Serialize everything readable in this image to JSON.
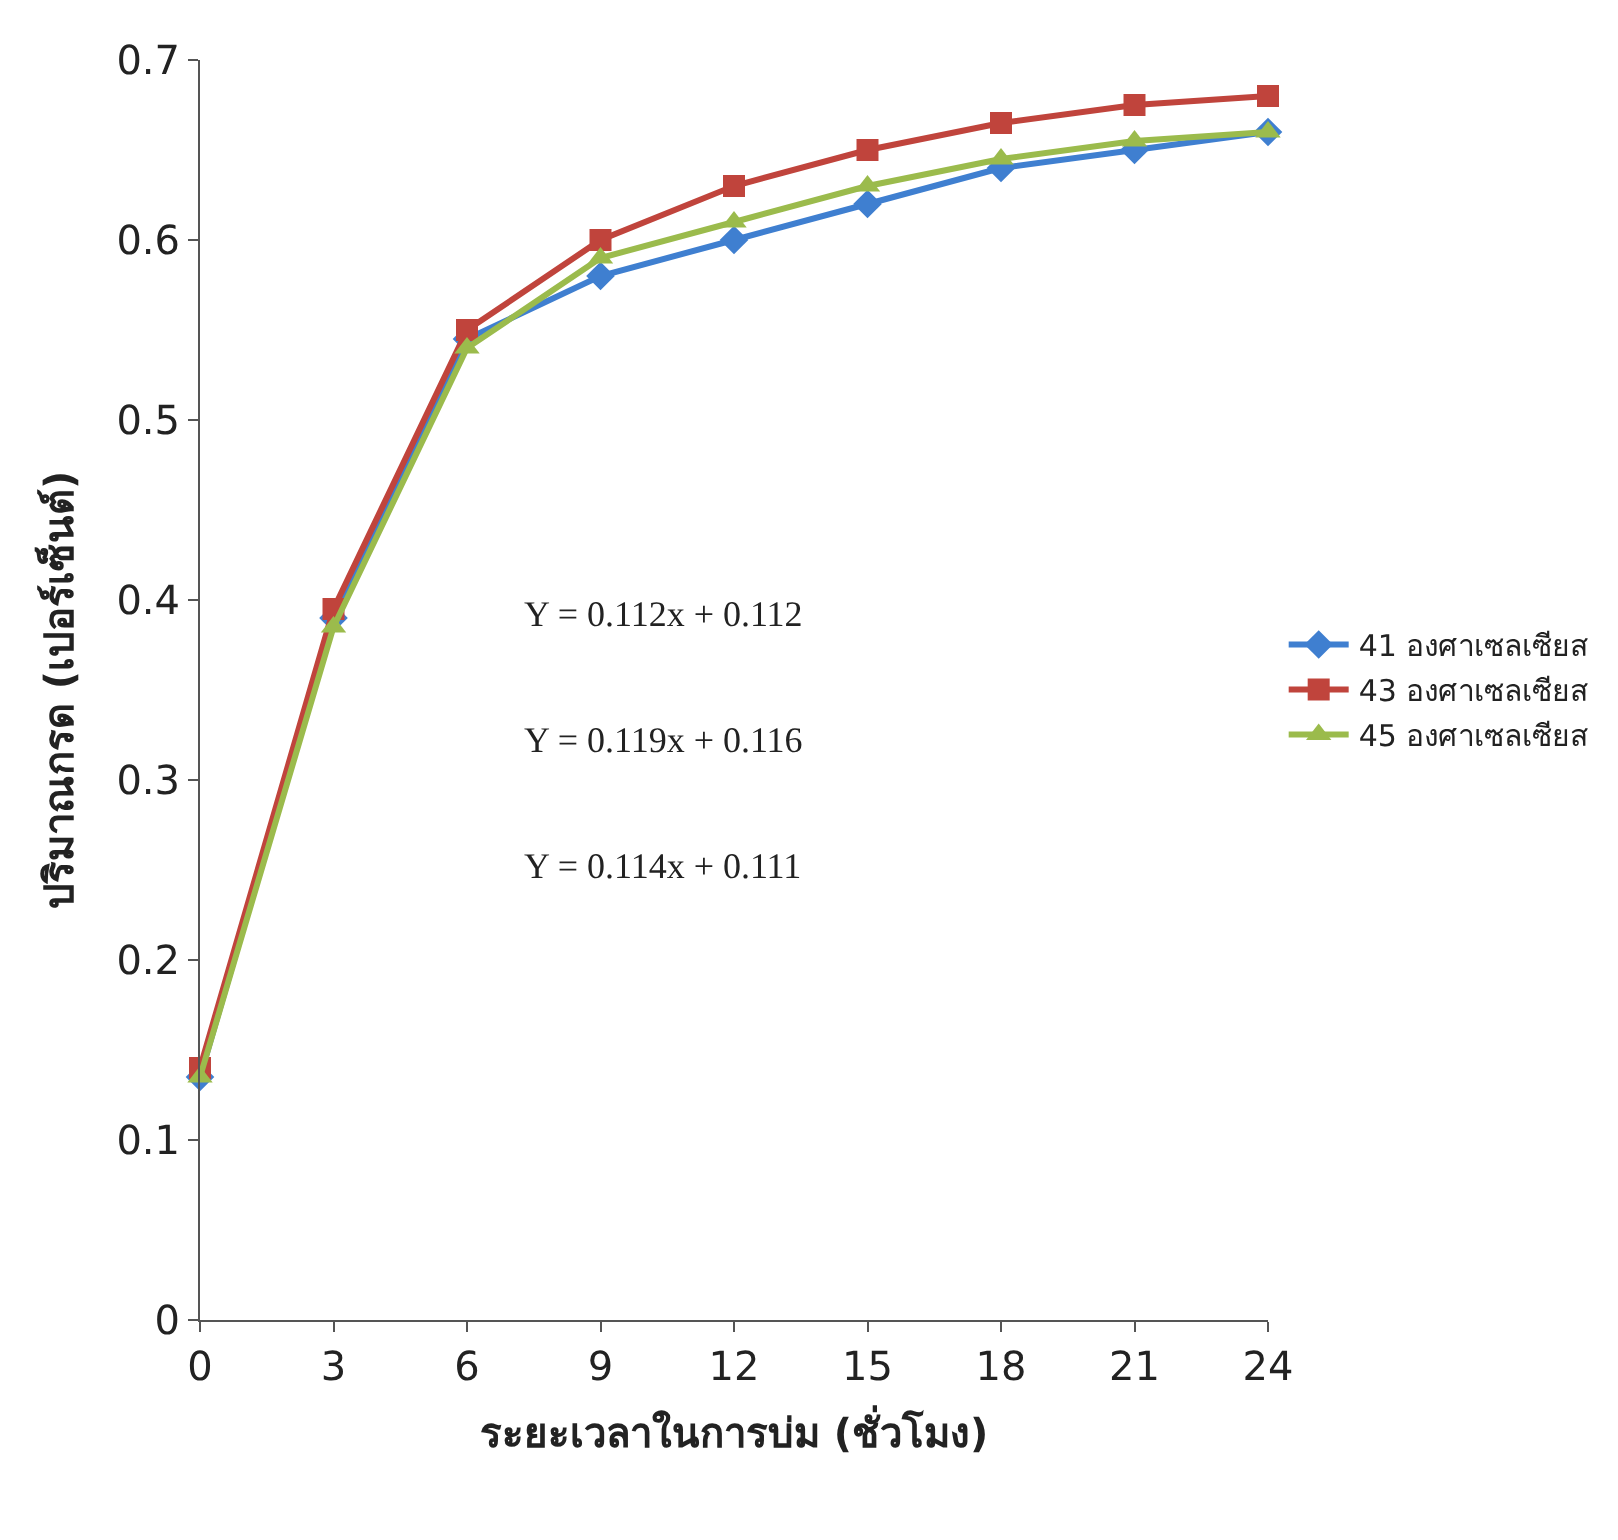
{
  "chart_data": {
    "type": "line",
    "xlabel": "ระยะเวลาในการบ่ม (ชั่วโมง)",
    "ylabel": "ปริมาณกรด (เปอร์เซ็นต์)",
    "x": [
      0,
      3,
      6,
      9,
      12,
      15,
      18,
      21,
      24
    ],
    "series": [
      {
        "name": "41 องศาเซลเซียส",
        "color": "#3f7fd0",
        "marker": "diamond",
        "values": [
          0.135,
          0.39,
          0.545,
          0.58,
          0.6,
          0.62,
          0.64,
          0.65,
          0.66
        ]
      },
      {
        "name": "43 องศาเซลเซียส",
        "color": "#c0443c",
        "marker": "square",
        "values": [
          0.14,
          0.395,
          0.55,
          0.6,
          0.63,
          0.65,
          0.665,
          0.675,
          0.68
        ]
      },
      {
        "name": "45 องศาเซลเซียส",
        "color": "#9bbb4c",
        "marker": "triangle",
        "values": [
          0.135,
          0.385,
          0.54,
          0.59,
          0.61,
          0.63,
          0.645,
          0.655,
          0.66
        ]
      }
    ],
    "annotations": [
      "Y = 0.112x + 0.112",
      "Y = 0.119x + 0.116",
      "Y = 0.114x + 0.111"
    ],
    "xlim": [
      0,
      24
    ],
    "xticks": [
      0,
      3,
      6,
      9,
      12,
      15,
      18,
      21,
      24
    ],
    "ylim": [
      0,
      0.7
    ],
    "yticks": [
      0,
      {
        "value": 0.1,
        "label": "0.1"
      },
      {
        "value": 0.2,
        "label": "0.2"
      },
      {
        "value": 0.3,
        "label": "0.3"
      },
      {
        "value": 0.4,
        "label": "0.4"
      },
      {
        "value": 0.5,
        "label": "0.5"
      },
      {
        "value": 0.6,
        "label": "0.6"
      },
      {
        "value": 0.7,
        "label": "0.7"
      }
    ],
    "legend": "right",
    "line_style": "solid"
  }
}
